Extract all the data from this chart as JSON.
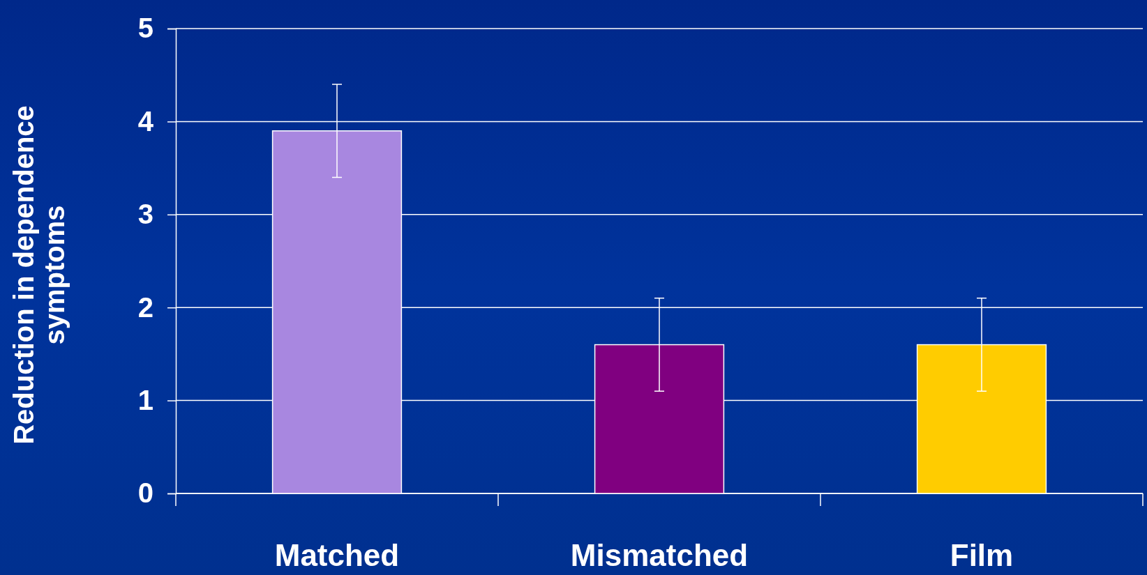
{
  "chart_data": {
    "type": "bar",
    "ylabel": "Reduction in dependence symptoms",
    "categories": [
      "Matched",
      "Mismatched",
      "Film"
    ],
    "values": [
      3.9,
      1.6,
      1.6
    ],
    "colors": [
      "#a887e0",
      "#800080",
      "#ffcc00"
    ],
    "errors": [
      0.5,
      0.5,
      0.5
    ],
    "ylim": [
      0,
      5
    ],
    "yticks": [
      0,
      1,
      2,
      3,
      4,
      5
    ],
    "grid": "y"
  }
}
